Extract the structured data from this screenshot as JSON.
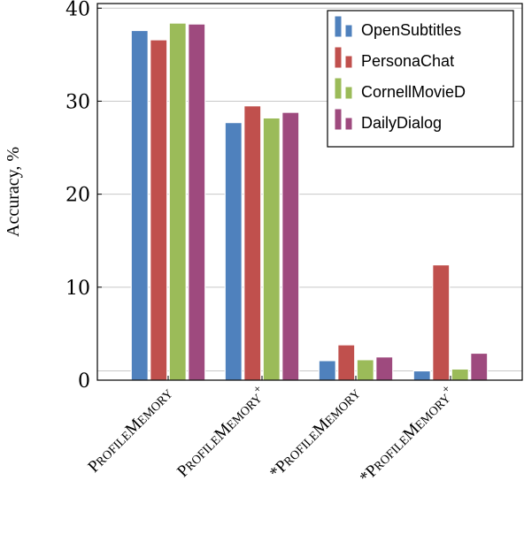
{
  "chart_data": {
    "type": "bar",
    "categories": [
      "PROFILEMEMORY",
      "PROFILEMEMORY+",
      "*PROFILEMEMORY",
      "*PROFILEMEMORY+"
    ],
    "category_labels": [
      {
        "prefix": "",
        "cap1": "P",
        "small1": "ROFILE",
        "cap2": "M",
        "small2": "EMORY",
        "sup": ""
      },
      {
        "prefix": "",
        "cap1": "P",
        "small1": "ROFILE",
        "cap2": "M",
        "small2": "EMORY",
        "sup": "+"
      },
      {
        "prefix": "*",
        "cap1": "P",
        "small1": "ROFILE",
        "cap2": "M",
        "small2": "EMORY",
        "sup": ""
      },
      {
        "prefix": "*",
        "cap1": "P",
        "small1": "ROFILE",
        "cap2": "M",
        "small2": "EMORY",
        "sup": "+"
      }
    ],
    "series": [
      {
        "name": "OpenSubtitles",
        "color": "#4f81bd",
        "values": [
          37.6,
          27.7,
          2.1,
          1.0
        ]
      },
      {
        "name": "PersonaChat",
        "color": "#c0504d",
        "values": [
          36.6,
          29.5,
          3.8,
          12.4
        ]
      },
      {
        "name": "CornellMovieD",
        "color": "#9bbb59",
        "values": [
          38.4,
          28.2,
          2.2,
          1.2
        ]
      },
      {
        "name": "DailyDialog",
        "color": "#9e4a7e",
        "values": [
          38.3,
          28.8,
          2.5,
          2.9
        ]
      }
    ],
    "ylabel": "Accuracy, %",
    "xlabel": "",
    "ylim": [
      0,
      40.5
    ],
    "yticks": [
      0,
      10,
      20,
      30,
      40
    ],
    "grid": "horizontal",
    "legend": "top-right"
  }
}
